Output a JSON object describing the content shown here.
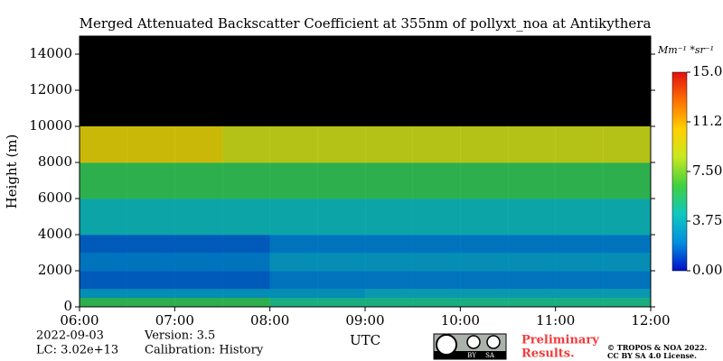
{
  "chart_data": {
    "type": "heatmap",
    "title": "Merged Attenuated Backscatter Coefficient at 355nm of pollyxt_noa at Antikythera",
    "xlabel": "UTC",
    "ylabel": "Height (m)",
    "xlim": [
      6,
      12
    ],
    "xticks": [
      {
        "value": 6,
        "label": "06:00"
      },
      {
        "value": 7,
        "label": "07:00"
      },
      {
        "value": 8,
        "label": "08:00"
      },
      {
        "value": 9,
        "label": "09:00"
      },
      {
        "value": 10,
        "label": "10:00"
      },
      {
        "value": 11,
        "label": "11:00"
      },
      {
        "value": 12,
        "label": "12:00"
      }
    ],
    "ylim": [
      0,
      15000
    ],
    "yticks": [
      0,
      2000,
      4000,
      6000,
      8000,
      10000,
      12000,
      14000
    ],
    "x_bins": [
      6,
      6.5,
      7,
      7.5,
      8,
      8.5,
      9,
      9.5,
      10,
      10.5,
      11,
      11.5,
      12
    ],
    "y_bins": [
      0,
      500,
      1000,
      2000,
      3000,
      4000,
      6000,
      8000,
      10000
    ],
    "z": [
      [
        6,
        6,
        6,
        6,
        5,
        5,
        5,
        5,
        5,
        5,
        5,
        5
      ],
      [
        3,
        3,
        3,
        3,
        3,
        3,
        3.5,
        3.5,
        3.5,
        3.5,
        3.5,
        3.5
      ],
      [
        1.5,
        1.5,
        1.5,
        1.5,
        2,
        2,
        2,
        2,
        2,
        2,
        2,
        2
      ],
      [
        2,
        2,
        2,
        2,
        3,
        3,
        3,
        3,
        3,
        3,
        3,
        3
      ],
      [
        1.5,
        1.5,
        1.5,
        1.5,
        2,
        2,
        2,
        2,
        2,
        2,
        2,
        2
      ],
      [
        4,
        4,
        4,
        4,
        4,
        4,
        4,
        4,
        4,
        4,
        4,
        4
      ],
      [
        6,
        6,
        6,
        6,
        6,
        6,
        6,
        6,
        6,
        6,
        6,
        6
      ],
      [
        10,
        10,
        10,
        9,
        9,
        9,
        9,
        9,
        9,
        9,
        9,
        9
      ]
    ],
    "colormap": [
      "#0010c8",
      "#0090e0",
      "#10c8c0",
      "#40d040",
      "#c8e820",
      "#ffd000",
      "#ff7000",
      "#e01010"
    ],
    "clim": [
      0,
      15
    ],
    "colorbar_label": "Mm⁻¹ *sr⁻¹",
    "colorbar_ticks": [
      {
        "value": 15,
        "label": "15.0"
      },
      {
        "value": 11.25,
        "label": "11.2"
      },
      {
        "value": 7.5,
        "label": "7.50"
      },
      {
        "value": 3.75,
        "label": "3.75"
      },
      {
        "value": 0,
        "label": "0.00"
      }
    ],
    "footer": {
      "date": "2022-09-03",
      "lc": "LC: 3.02e+13",
      "version": "Version: 3.5",
      "calibration": "Calibration: History",
      "preliminary": [
        "Preliminary",
        "Results."
      ],
      "copyright": [
        "© TROPOS & NOA 2022.",
        "CC BY SA 4.0 License."
      ],
      "license_badge": [
        "BY",
        "SA"
      ]
    }
  }
}
